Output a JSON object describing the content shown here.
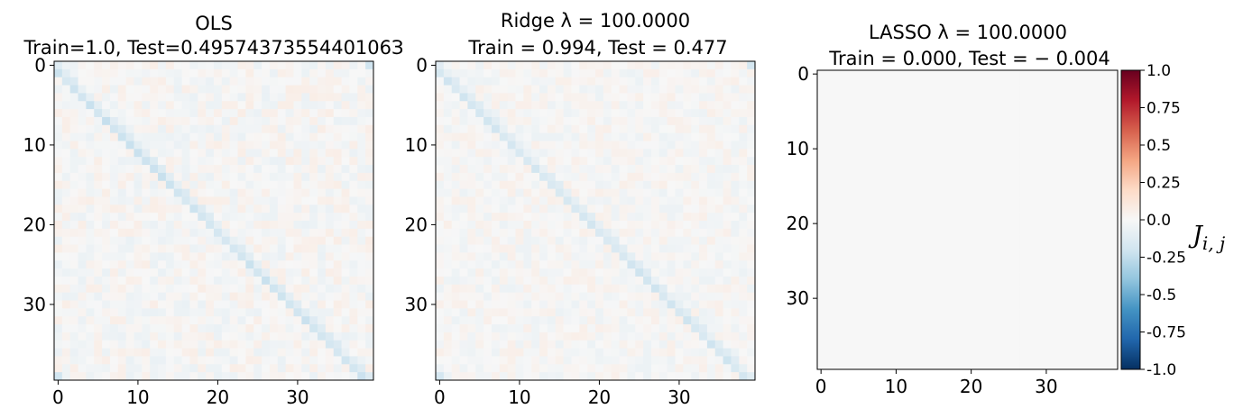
{
  "chart_data": [
    {
      "type": "heatmap",
      "title_line1": "OLS",
      "title_line2": "Train=1.0, Test=0.4957437355440106З",
      "x_ticks": [
        "0",
        "10",
        "20",
        "30"
      ],
      "y_ticks": [
        "0",
        "10",
        "20",
        "30"
      ],
      "size": 40,
      "diagonal_value": -0.2,
      "corner_value": -0.2,
      "off_diagonal_noise": 0.07
    },
    {
      "type": "heatmap",
      "title_line1": "Ridge λ = 100.0000",
      "title_line2": "Train = 0.994, Test = 0.477",
      "x_ticks": [
        "0",
        "10",
        "20",
        "30"
      ],
      "y_ticks": [
        "0",
        "10",
        "20",
        "30"
      ],
      "size": 40,
      "diagonal_value": -0.18,
      "corner_value": -0.18,
      "off_diagonal_noise": 0.06
    },
    {
      "type": "heatmap",
      "title_line1": "LASSO λ = 100.0000",
      "title_line2": "Train = 0.000, Test = − 0.004",
      "x_ticks": [
        "0",
        "10",
        "20",
        "30"
      ],
      "y_ticks": [
        "0",
        "10",
        "20",
        "30"
      ],
      "size": 40,
      "diagonal_value": 0.0,
      "corner_value": 0.0,
      "off_diagonal_noise": 0.0
    }
  ],
  "colorbar": {
    "label": "J",
    "label_subscript": "i, j",
    "colormap": "RdBu_r",
    "range": [
      -1.0,
      1.0
    ],
    "ticks": [
      "1.0",
      "0.75",
      "0.5",
      "0.25",
      "0.0",
      "-0.25",
      "-0.5",
      "-0.75",
      "-1.0"
    ],
    "colors": [
      "#67001f",
      "#b2182b",
      "#d6604d",
      "#f4a582",
      "#fddbc7",
      "#f7f7f7",
      "#d1e5f0",
      "#92c5de",
      "#4393c3",
      "#2166ac",
      "#053061"
    ]
  }
}
